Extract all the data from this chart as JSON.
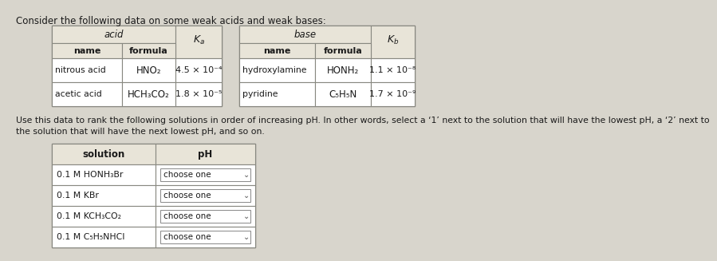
{
  "title": "Consider the following data on some weak acids and weak bases:",
  "bg_color": "#d8d5cc",
  "table_bg": "#ffffff",
  "header_bg": "#e8e4d8",
  "acid_table": {
    "rows": [
      [
        "nitrous acid",
        "HNO₂",
        "4.5 × 10⁻⁴"
      ],
      [
        "acetic acid",
        "HCH₃CO₂",
        "1.8 × 10⁻⁵"
      ]
    ]
  },
  "base_table": {
    "rows": [
      [
        "hydroxylamine",
        "HONH₂",
        "1.1 × 10⁻⁸"
      ],
      [
        "pyridine",
        "C₅H₅N",
        "1.7 × 10⁻⁹"
      ]
    ]
  },
  "instruction1": "Use this data to rank the following solutions in order of increasing pH. In other words, select a ‘1’ next to the solution that will have the lowest pH, a ‘2’ next to",
  "instruction2": "the solution that will have the next lowest pH, and so on.",
  "solution_table": {
    "rows": [
      "0.1 M HONH₃Br",
      "0.1 M KBr",
      "0.1 M KCH₃CO₂",
      "0.1 M C₅H₅NHCI"
    ]
  },
  "text_color": "#1a1a1a",
  "line_color": "#888880",
  "dropdown_bg": "#ffffff",
  "dropdown_border": "#888888"
}
